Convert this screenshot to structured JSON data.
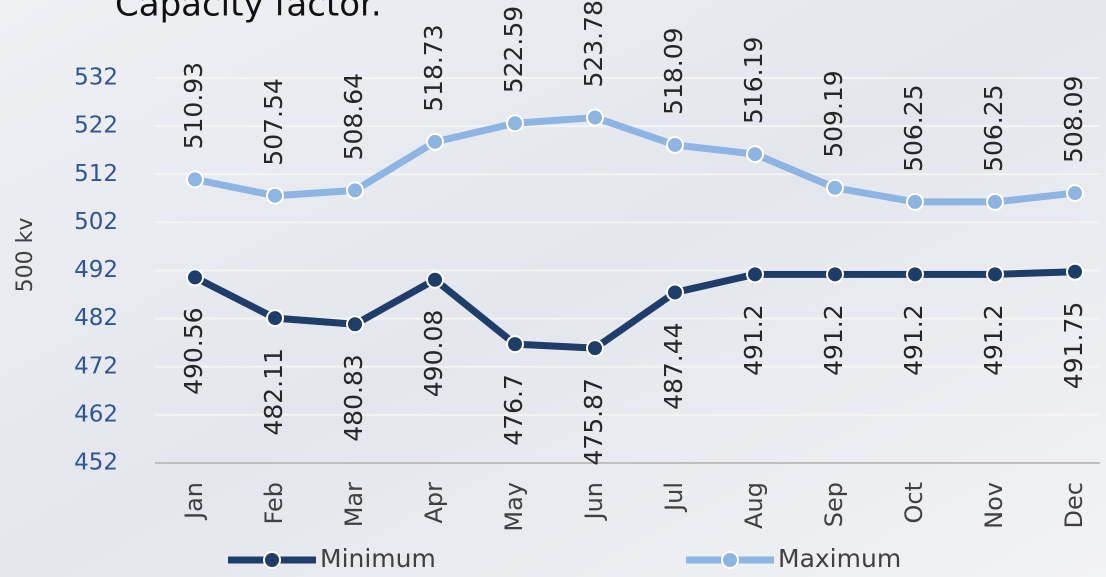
{
  "chart_data": {
    "type": "line",
    "title": "Capacity factor.",
    "y_label": "500 kv",
    "categories": [
      "Jan",
      "Feb",
      "Mar",
      "Apr",
      "May",
      "Jun",
      "Jul",
      "Aug",
      "Sep",
      "Oct",
      "Nov",
      "Dec"
    ],
    "series": [
      {
        "name": "Minimum",
        "color": "#1f3d6b",
        "values": [
          490.56,
          482.11,
          480.83,
          490.08,
          476.7,
          475.87,
          487.44,
          491.2,
          491.2,
          491.2,
          491.2,
          491.75
        ]
      },
      {
        "name": "Maximum",
        "color": "#8db4e2",
        "values": [
          510.93,
          507.54,
          508.64,
          518.73,
          522.59,
          523.78,
          518.09,
          516.19,
          509.19,
          506.25,
          506.25,
          508.09
        ]
      }
    ],
    "ylim": [
      452,
      532
    ],
    "yticks": [
      452,
      462,
      472,
      482,
      492,
      502,
      512,
      522,
      532
    ],
    "grid": true
  }
}
